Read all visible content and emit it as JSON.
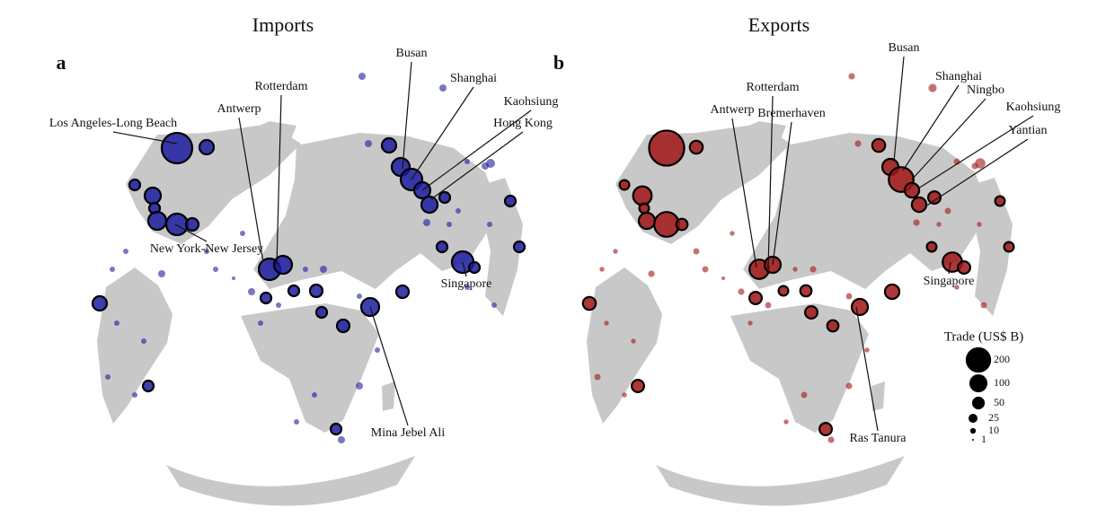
{
  "panels": [
    {
      "label": "a",
      "title": "Imports",
      "ports": [
        "Los Angeles-Long Beach",
        "Antwerp",
        "Rotterdam",
        "Busan",
        "Shanghai",
        "Kaohsiung",
        "Hong Kong",
        "New York-New Jersey",
        "Singapore",
        "Mina Jebel Ali"
      ]
    },
    {
      "label": "b",
      "title": "Exports",
      "ports": [
        "Busan",
        "Shanghai",
        "Ningbo",
        "Rotterdam",
        "Antwerp",
        "Bremerhaven",
        "Kaohsiung",
        "Yantian",
        "Singapore",
        "Ras Tanura"
      ]
    }
  ],
  "legend": {
    "title": "Trade (US$ B)",
    "sizes": [
      200,
      100,
      50,
      25,
      10,
      1
    ]
  }
}
